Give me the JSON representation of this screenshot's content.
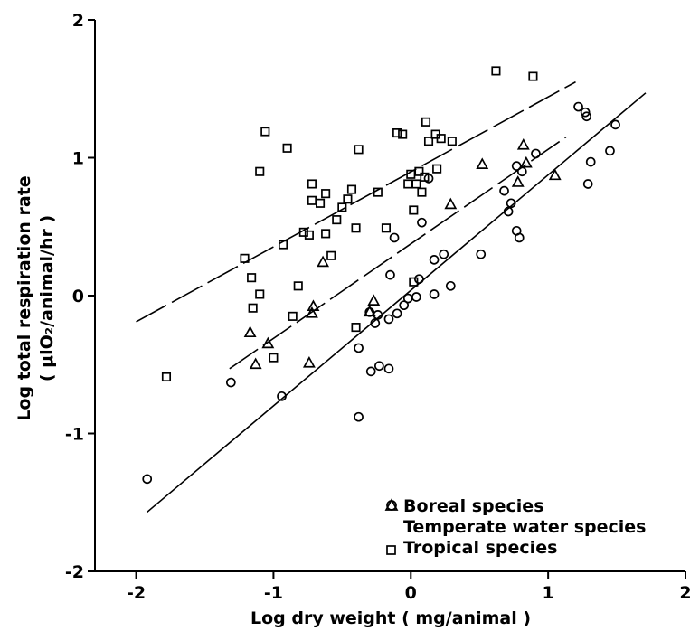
{
  "chart_data": {
    "type": "scatter",
    "title": "",
    "xlabel": "Log dry weight ( mg/animal )",
    "ylabel_line1": "Log total respiration rate",
    "ylabel_line2": "( μlO₂/animal/hr )",
    "xlim": [
      -2.3,
      2.0
    ],
    "ylim": [
      -2.0,
      2.0
    ],
    "x_ticks": [
      -2,
      -1,
      0,
      1,
      2
    ],
    "x_tick_labels": [
      "-2",
      "-1",
      "0",
      "1",
      "2"
    ],
    "y_ticks": [
      -2,
      -1,
      0,
      1,
      2
    ],
    "y_tick_labels": [
      "-2",
      "-1",
      "0",
      "1",
      "2"
    ],
    "legend_position": "bottom-right",
    "series": [
      {
        "name": "Boreal species",
        "marker": "circle",
        "points": [
          [
            -1.92,
            -1.33
          ],
          [
            -1.31,
            -0.63
          ],
          [
            -0.94,
            -0.73
          ],
          [
            -0.38,
            -0.88
          ],
          [
            -0.38,
            -0.38
          ],
          [
            -0.29,
            -0.55
          ],
          [
            -0.23,
            -0.51
          ],
          [
            -0.16,
            -0.53
          ],
          [
            -0.3,
            -0.12
          ],
          [
            -0.26,
            -0.2
          ],
          [
            -0.24,
            -0.14
          ],
          [
            -0.16,
            -0.17
          ],
          [
            -0.1,
            -0.13
          ],
          [
            -0.05,
            -0.07
          ],
          [
            -0.02,
            -0.02
          ],
          [
            0.04,
            -0.01
          ],
          [
            -0.15,
            0.15
          ],
          [
            0.06,
            0.12
          ],
          [
            0.17,
            0.26
          ],
          [
            0.24,
            0.3
          ],
          [
            0.17,
            0.01
          ],
          [
            0.29,
            0.07
          ],
          [
            -0.12,
            0.42
          ],
          [
            0.08,
            0.53
          ],
          [
            0.13,
            0.85
          ],
          [
            0.51,
            0.3
          ],
          [
            0.68,
            0.76
          ],
          [
            0.71,
            0.61
          ],
          [
            0.73,
            0.67
          ],
          [
            0.77,
            0.94
          ],
          [
            0.77,
            0.47
          ],
          [
            0.79,
            0.42
          ],
          [
            0.81,
            0.9
          ],
          [
            0.91,
            1.03
          ],
          [
            1.22,
            1.37
          ],
          [
            1.27,
            1.33
          ],
          [
            1.28,
            1.3
          ],
          [
            1.29,
            0.81
          ],
          [
            1.31,
            0.97
          ],
          [
            1.45,
            1.05
          ],
          [
            1.49,
            1.24
          ]
        ]
      },
      {
        "name": "Temperate water species",
        "marker": "triangle",
        "points": [
          [
            -1.17,
            -0.27
          ],
          [
            -1.13,
            -0.5
          ],
          [
            -1.04,
            -0.35
          ],
          [
            -0.74,
            -0.49
          ],
          [
            -0.72,
            -0.13
          ],
          [
            -0.71,
            -0.08
          ],
          [
            -0.64,
            0.24
          ],
          [
            -0.27,
            -0.04
          ],
          [
            -0.3,
            -0.12
          ],
          [
            0.29,
            0.66
          ],
          [
            0.52,
            0.95
          ],
          [
            0.78,
            0.82
          ],
          [
            0.82,
            1.09
          ],
          [
            0.84,
            0.96
          ],
          [
            1.05,
            0.87
          ]
        ]
      },
      {
        "name": "Tropical species",
        "marker": "square",
        "points": [
          [
            -1.78,
            -0.59
          ],
          [
            -1.21,
            0.27
          ],
          [
            -1.16,
            0.13
          ],
          [
            -1.15,
            -0.09
          ],
          [
            -1.1,
            0.01
          ],
          [
            -1.1,
            0.9
          ],
          [
            -1.06,
            1.19
          ],
          [
            -1.0,
            -0.45
          ],
          [
            -0.93,
            0.37
          ],
          [
            -0.9,
            1.07
          ],
          [
            -0.86,
            -0.15
          ],
          [
            -0.82,
            0.07
          ],
          [
            -0.78,
            0.46
          ],
          [
            -0.74,
            0.44
          ],
          [
            -0.72,
            0.69
          ],
          [
            -0.72,
            0.81
          ],
          [
            -0.66,
            0.67
          ],
          [
            -0.62,
            0.45
          ],
          [
            -0.62,
            0.74
          ],
          [
            -0.58,
            0.29
          ],
          [
            -0.54,
            0.55
          ],
          [
            -0.5,
            0.64
          ],
          [
            -0.46,
            0.7
          ],
          [
            -0.43,
            0.77
          ],
          [
            -0.4,
            -0.23
          ],
          [
            -0.4,
            0.49
          ],
          [
            -0.38,
            1.06
          ],
          [
            -0.24,
            0.75
          ],
          [
            -0.18,
            0.49
          ],
          [
            -0.1,
            1.18
          ],
          [
            -0.06,
            1.17
          ],
          [
            -0.02,
            0.81
          ],
          [
            0.0,
            0.88
          ],
          [
            0.02,
            0.1
          ],
          [
            0.02,
            0.62
          ],
          [
            0.04,
            0.81
          ],
          [
            0.06,
            0.9
          ],
          [
            0.08,
            0.75
          ],
          [
            0.1,
            0.86
          ],
          [
            0.11,
            1.26
          ],
          [
            0.13,
            1.12
          ],
          [
            0.18,
            1.17
          ],
          [
            0.19,
            0.92
          ],
          [
            0.22,
            1.14
          ],
          [
            0.3,
            1.12
          ],
          [
            0.62,
            1.63
          ],
          [
            0.89,
            1.59
          ]
        ]
      }
    ],
    "fit_lines": [
      {
        "series": "Boreal species",
        "dashed": false,
        "x": [
          -1.92,
          1.71
        ],
        "y": [
          -1.57,
          1.47
        ]
      },
      {
        "series": "Temperate water species",
        "dashed": true,
        "x": [
          -1.32,
          1.13
        ],
        "y": [
          -0.53,
          1.15
        ]
      },
      {
        "series": "Tropical species",
        "dashed": true,
        "x": [
          -2.0,
          1.2
        ],
        "y": [
          -0.19,
          1.55
        ]
      }
    ]
  }
}
